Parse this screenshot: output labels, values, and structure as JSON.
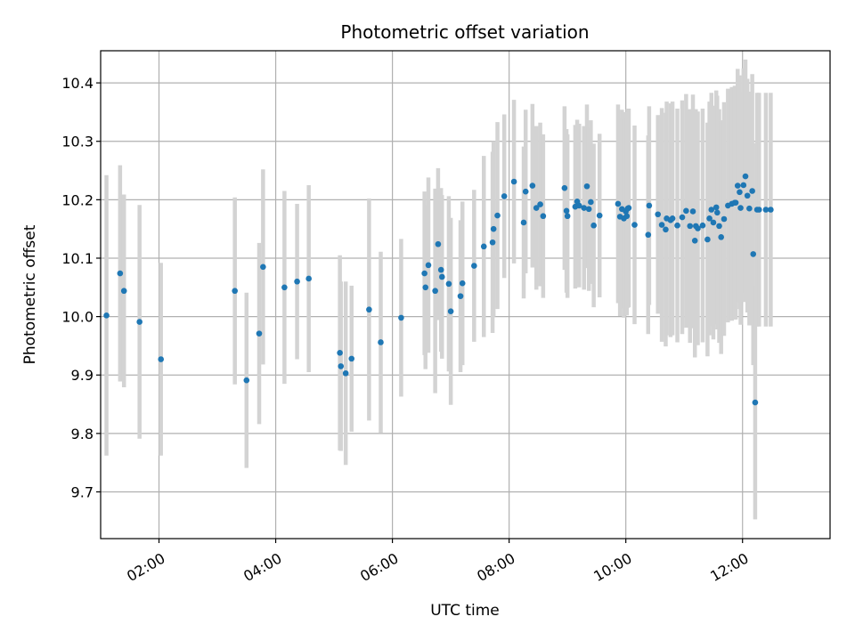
{
  "chart_data": {
    "type": "scatter",
    "title": "Photometric offset variation",
    "xlabel": "UTC time",
    "ylabel": "Photometric offset",
    "x_unit": "hours",
    "xlim": [
      "01:00",
      "13:30"
    ],
    "ylim": [
      9.62,
      10.455
    ],
    "x_ticks": [
      "02:00",
      "04:00",
      "06:00",
      "08:00",
      "10:00",
      "12:00"
    ],
    "y_ticks": [
      "9.7",
      "9.8",
      "9.9",
      "10.0",
      "10.1",
      "10.2",
      "10.3",
      "10.4"
    ],
    "grid": true,
    "colors": {
      "point": "#1f77b4",
      "errorbar": "#d3d3d3",
      "grid": "#b0b0b0"
    },
    "series": [
      {
        "type": "errorbar",
        "x": [
          "01:06",
          "01:20",
          "01:24",
          "01:40",
          "02:02",
          "03:18",
          "03:30",
          "03:43",
          "03:47",
          "04:09",
          "04:22",
          "04:34",
          "05:06",
          "05:07",
          "05:12",
          "05:18",
          "05:36",
          "05:48",
          "06:09",
          "06:33",
          "06:34",
          "06:37",
          "06:44",
          "06:47",
          "06:50",
          "06:51",
          "06:58",
          "07:00",
          "07:10",
          "07:12",
          "07:24",
          "07:34",
          "07:43",
          "07:44",
          "07:48",
          "07:55",
          "08:05",
          "08:15",
          "08:17",
          "08:24",
          "08:28",
          "08:32",
          "08:35",
          "08:57",
          "08:59",
          "09:00",
          "09:08",
          "09:10",
          "09:12",
          "09:17",
          "09:20",
          "09:22",
          "09:24",
          "09:27",
          "09:33",
          "09:52",
          "09:54",
          "09:56",
          "09:58",
          "10:00",
          "10:01",
          "10:02",
          "10:03",
          "10:09",
          "10:23",
          "10:24",
          "10:33",
          "10:37",
          "10:41",
          "10:42",
          "10:46",
          "10:48",
          "10:53",
          "10:58",
          "11:02",
          "11:06",
          "11:09",
          "11:11",
          "11:12",
          "11:14",
          "11:19",
          "11:24",
          "11:26",
          "11:28",
          "11:30",
          "11:33",
          "11:34",
          "11:36",
          "11:38",
          "11:41",
          "11:45",
          "11:49",
          "11:52",
          "11:53",
          "11:55",
          "11:57",
          "11:58",
          "12:01",
          "12:03",
          "12:05",
          "12:07",
          "12:10",
          "12:11",
          "12:13",
          "12:15",
          "12:17",
          "12:24",
          "12:29"
        ],
        "y": [
          10.002,
          10.074,
          10.044,
          9.991,
          9.927,
          10.044,
          9.891,
          9.971,
          10.085,
          10.05,
          10.06,
          10.065,
          9.938,
          9.915,
          9.903,
          9.928,
          10.012,
          9.956,
          9.998,
          10.074,
          10.05,
          10.088,
          10.044,
          10.124,
          10.08,
          10.068,
          10.056,
          10.009,
          10.035,
          10.057,
          10.087,
          10.12,
          10.127,
          10.15,
          10.173,
          10.206,
          10.231,
          10.161,
          10.214,
          10.224,
          10.186,
          10.192,
          10.172,
          10.22,
          10.181,
          10.172,
          10.188,
          10.197,
          10.19,
          10.186,
          10.223,
          10.184,
          10.196,
          10.156,
          10.173,
          10.193,
          10.171,
          10.184,
          10.168,
          10.18,
          10.172,
          10.185,
          10.186,
          10.157,
          10.14,
          10.19,
          10.175,
          10.157,
          10.149,
          10.168,
          10.165,
          10.168,
          10.156,
          10.17,
          10.181,
          10.155,
          10.18,
          10.13,
          10.155,
          10.151,
          10.156,
          10.132,
          10.168,
          10.183,
          10.161,
          10.187,
          10.178,
          10.155,
          10.136,
          10.167,
          10.19,
          10.193,
          10.195,
          10.195,
          10.224,
          10.213,
          10.186,
          10.225,
          10.24,
          10.207,
          10.185,
          10.215,
          10.107,
          9.853,
          10.183,
          10.183,
          10.183,
          10.183
        ],
        "yerr": [
          0.24,
          0.185,
          0.165,
          0.2,
          0.165,
          0.16,
          0.15,
          0.155,
          0.167,
          0.165,
          0.133,
          0.16,
          0.167,
          0.145,
          0.157,
          0.125,
          0.19,
          0.155,
          0.135,
          0.14,
          0.14,
          0.15,
          0.175,
          0.13,
          0.14,
          0.14,
          0.15,
          0.16,
          0.13,
          0.14,
          0.13,
          0.155,
          0.155,
          0.15,
          0.16,
          0.14,
          0.14,
          0.13,
          0.14,
          0.14,
          0.14,
          0.14,
          0.14,
          0.14,
          0.14,
          0.14,
          0.14,
          0.14,
          0.14,
          0.14,
          0.14,
          0.14,
          0.14,
          0.14,
          0.14,
          0.17,
          0.17,
          0.17,
          0.17,
          0.17,
          0.17,
          0.17,
          0.17,
          0.17,
          0.17,
          0.17,
          0.17,
          0.2,
          0.2,
          0.2,
          0.2,
          0.2,
          0.2,
          0.2,
          0.2,
          0.2,
          0.2,
          0.2,
          0.2,
          0.2,
          0.2,
          0.2,
          0.2,
          0.2,
          0.2,
          0.2,
          0.2,
          0.2,
          0.2,
          0.2,
          0.2,
          0.2,
          0.2,
          0.2,
          0.2,
          0.2,
          0.2,
          0.2,
          0.2,
          0.2,
          0.2,
          0.2,
          0.19,
          0.2,
          0.2,
          0.2,
          0.2,
          0.2
        ]
      }
    ]
  }
}
